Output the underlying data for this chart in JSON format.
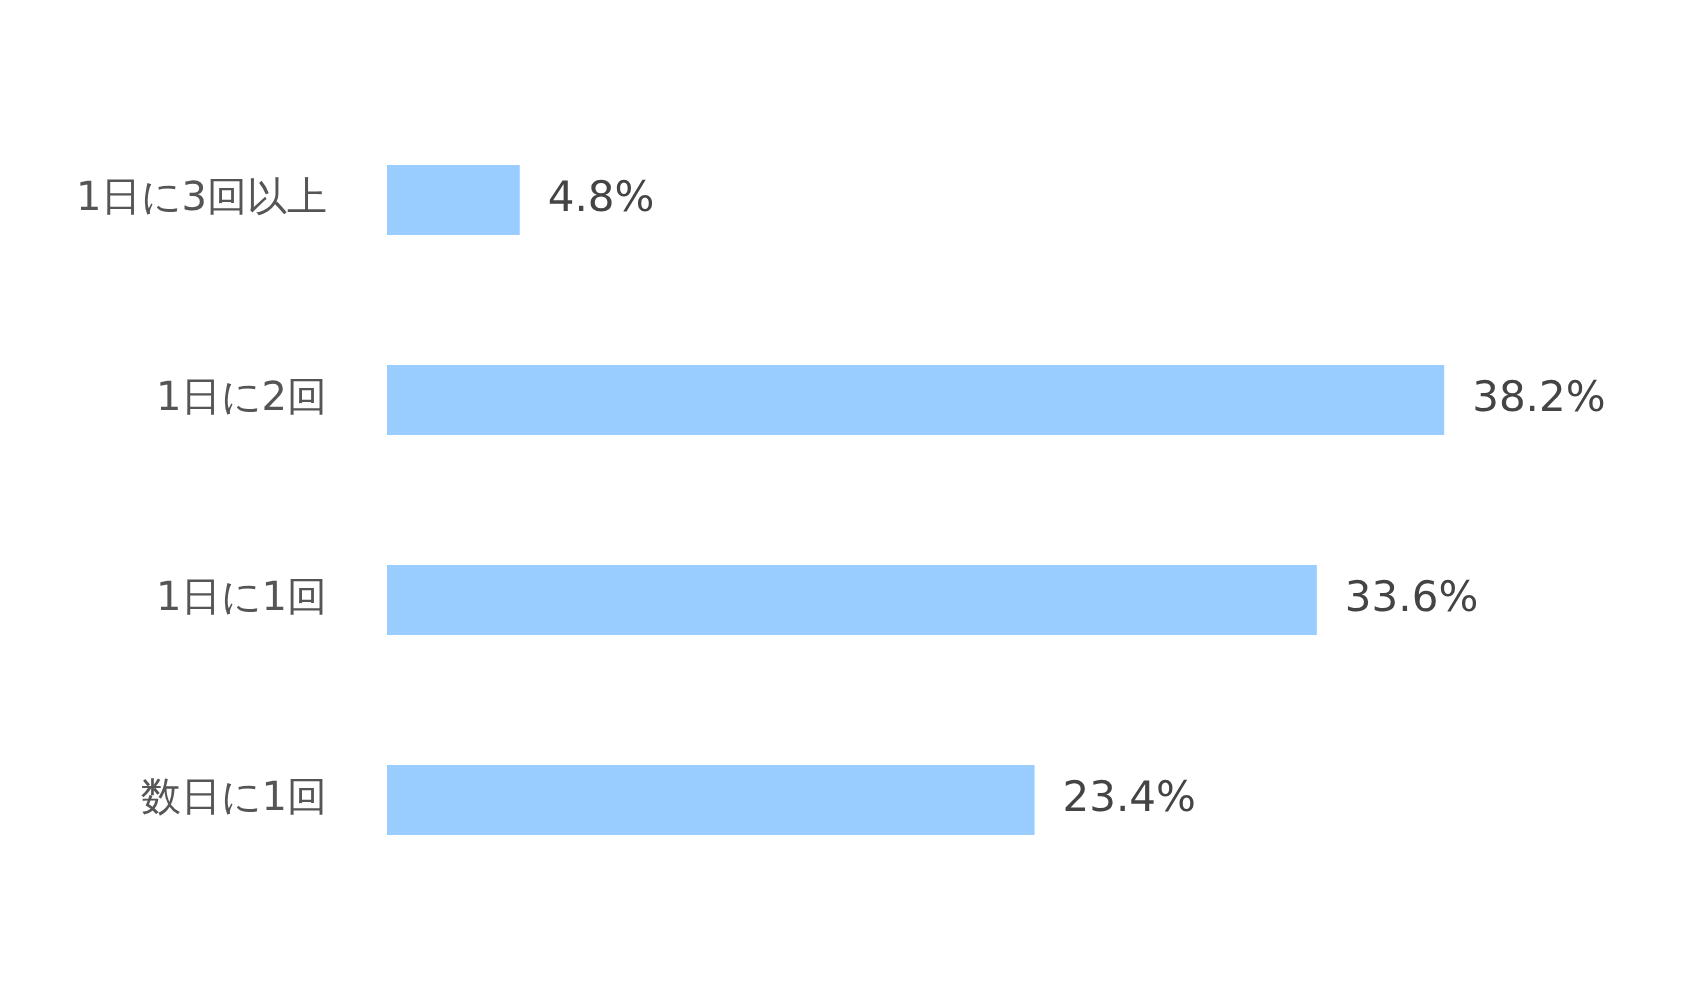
{
  "chart_data": {
    "type": "bar",
    "orientation": "horizontal",
    "categories": [
      "1日に3回以上",
      "1日に2回",
      "1日に1回",
      "数日に1回"
    ],
    "values": [
      4.8,
      38.2,
      33.6,
      23.4
    ],
    "color": "#99ccff",
    "value_labels": [
      "4.8%",
      "38.2%",
      "33.6%",
      "23.4%"
    ],
    "grid": false,
    "legend": false
  }
}
